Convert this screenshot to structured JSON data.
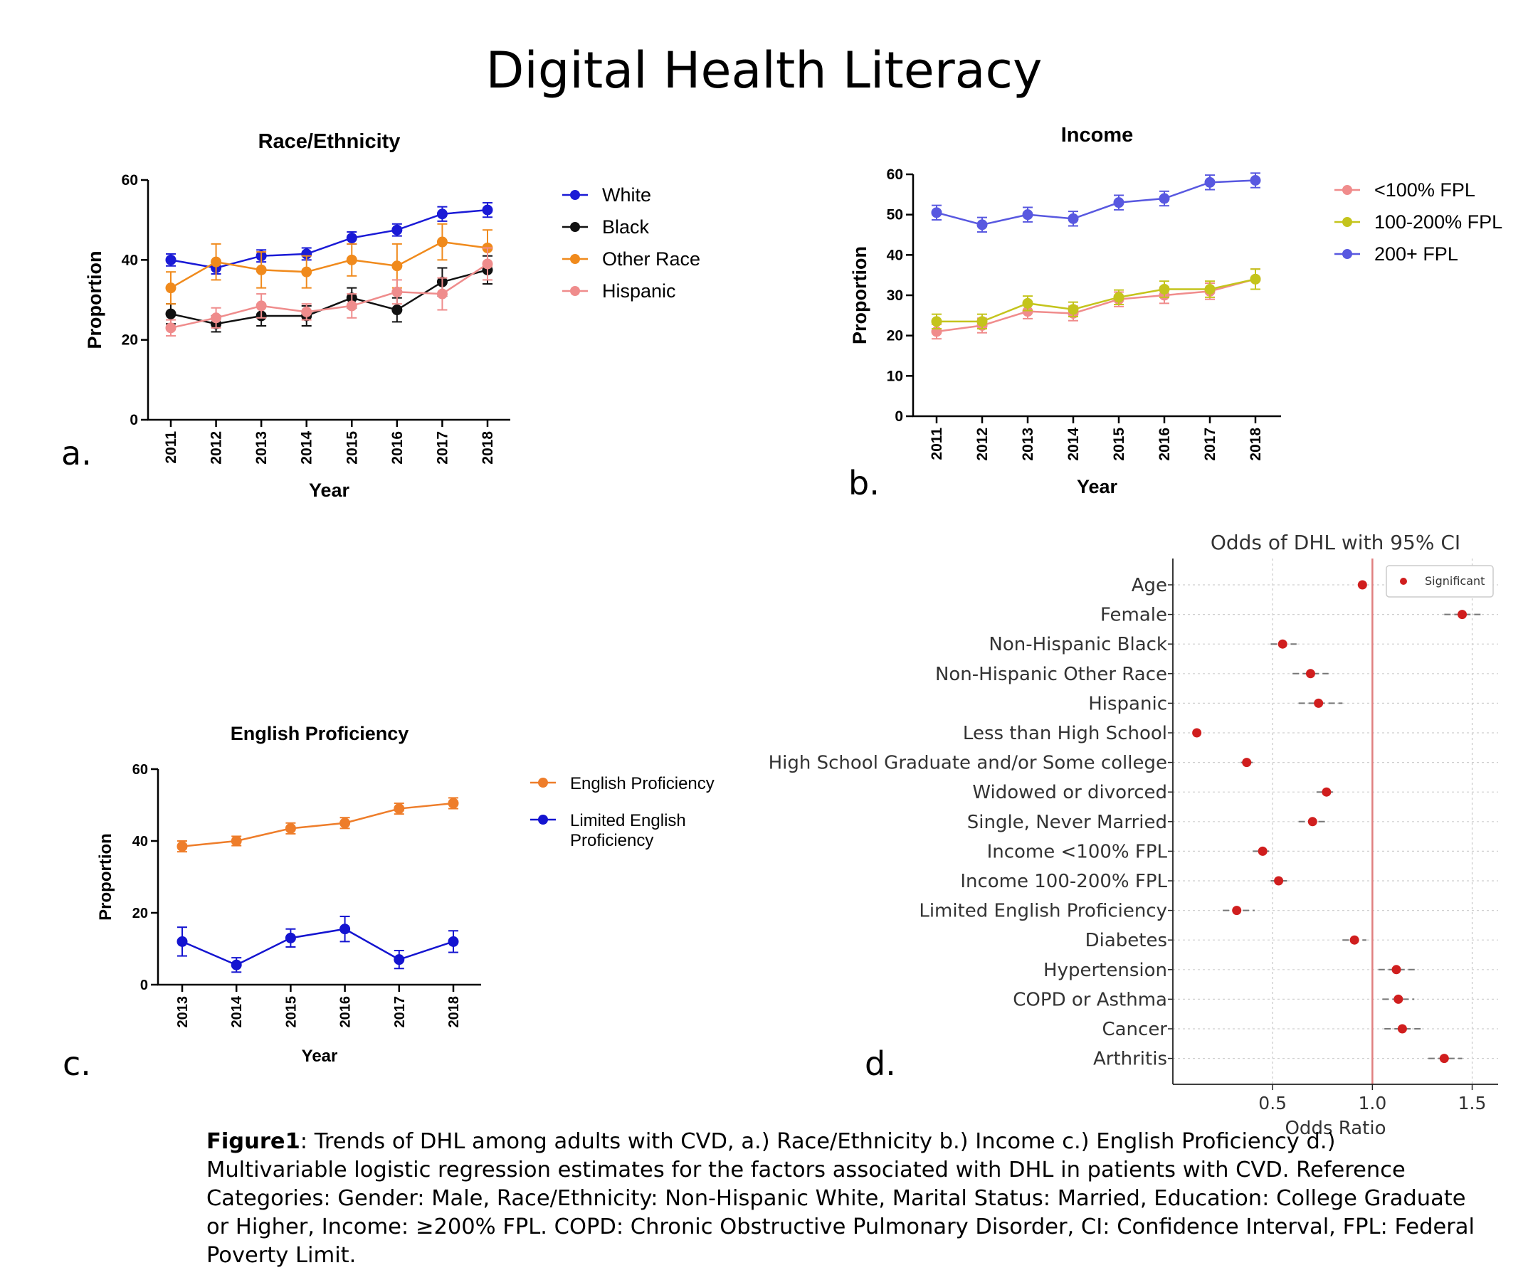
{
  "title": "Digital Health Literacy",
  "panel_letters": [
    "a.",
    "b.",
    "c.",
    "d."
  ],
  "caption": {
    "label": "Figure1",
    "text": ": Trends of DHL among adults with CVD, a.) Race/Ethnicity b.) Income c.) English Proficiency d.) Multivariable logistic regression estimates for the factors associated with DHL in patients with CVD. Reference Categories:  Gender: Male, Race/Ethnicity: Non-Hispanic White, Marital Status: Married, Education: College Graduate or Higher, Income: ≥200% FPL. COPD: Chronic Obstructive Pulmonary Disorder, CI: Confidence Interval, FPL: Federal Poverty Limit."
  },
  "chart_data": [
    {
      "id": "a",
      "type": "line",
      "title": "Race/Ethnicity",
      "xlabel": "Year",
      "ylabel": "Proportion",
      "x": [
        "2011",
        "2012",
        "2013",
        "2014",
        "2015",
        "2016",
        "2017",
        "2018"
      ],
      "ylim": [
        0,
        60
      ],
      "yticks": [
        0,
        20,
        40,
        60
      ],
      "legend_position": "right",
      "series": [
        {
          "name": "White",
          "color": "#1a1ad6",
          "values": [
            40,
            38,
            41,
            41.5,
            45.5,
            47.5,
            51.5,
            52.5
          ],
          "err": [
            1.5,
            1.5,
            1.5,
            1.5,
            1.5,
            1.5,
            1.8,
            1.8
          ]
        },
        {
          "name": "Black",
          "color": "#111111",
          "values": [
            26.5,
            24,
            26,
            26,
            30.5,
            27.5,
            34.5,
            37.5
          ],
          "err": [
            2.5,
            2,
            2.5,
            2.5,
            2.5,
            3,
            3.5,
            3.5
          ]
        },
        {
          "name": "Other Race",
          "color": "#f08a1c",
          "values": [
            33,
            39.5,
            37.5,
            37,
            40,
            38.5,
            44.5,
            43
          ],
          "err": [
            4,
            4.5,
            4.5,
            4,
            4,
            5.5,
            4.5,
            4.5
          ]
        },
        {
          "name": "Hispanic",
          "color": "#ef8c8c",
          "values": [
            23,
            25.5,
            28.5,
            27,
            28.5,
            32,
            31.5,
            39
          ],
          "err": [
            2,
            2.5,
            3,
            2,
            3,
            3,
            4,
            4
          ]
        }
      ]
    },
    {
      "id": "b",
      "type": "line",
      "title": "Income",
      "xlabel": "Year",
      "ylabel": "Proportion",
      "x": [
        "2011",
        "2012",
        "2013",
        "2014",
        "2015",
        "2016",
        "2017",
        "2018"
      ],
      "ylim": [
        0,
        60
      ],
      "yticks": [
        0,
        10,
        20,
        30,
        40,
        50,
        60
      ],
      "legend_position": "right",
      "series": [
        {
          "name": "<100% FPL",
          "color": "#f08c8c",
          "values": [
            21,
            22.5,
            26,
            25.5,
            29,
            30,
            31,
            34
          ],
          "err": [
            1.8,
            1.8,
            1.8,
            1.8,
            1.8,
            2,
            2,
            2.5
          ]
        },
        {
          "name": "100-200% FPL",
          "color": "#c4c41c",
          "values": [
            23.5,
            23.5,
            28,
            26.5,
            29.5,
            31.5,
            31.5,
            34
          ],
          "err": [
            1.8,
            1.8,
            1.8,
            1.8,
            1.8,
            2,
            2,
            2.5
          ]
        },
        {
          "name": "200+ FPL",
          "color": "#5858e0",
          "values": [
            50.5,
            47.5,
            50,
            49,
            53,
            54,
            58,
            58.5
          ],
          "err": [
            1.8,
            1.8,
            1.8,
            1.8,
            1.8,
            1.8,
            1.8,
            1.8
          ]
        }
      ]
    },
    {
      "id": "c",
      "type": "line",
      "title": "English  Proficiency",
      "xlabel": "Year",
      "ylabel": "Proportion",
      "x": [
        "2013",
        "2014",
        "2015",
        "2016",
        "2017",
        "2018"
      ],
      "ylim": [
        0,
        60
      ],
      "yticks": [
        0,
        20,
        40,
        60
      ],
      "legend_position": "right",
      "series": [
        {
          "name": "English Proficiency",
          "name_lines": [
            "English Proficiency"
          ],
          "color": "#ee7d2a",
          "values": [
            38.5,
            40,
            43.5,
            45,
            49,
            50.5
          ],
          "err": [
            1.5,
            1.3,
            1.5,
            1.5,
            1.5,
            1.5
          ]
        },
        {
          "name": "Limited English Proficiency",
          "name_lines": [
            "Limited English",
            "Proficiency"
          ],
          "color": "#1414d0",
          "values": [
            12,
            5.5,
            13,
            15.5,
            7,
            12
          ],
          "err": [
            4,
            2,
            2.5,
            3.5,
            2.5,
            3
          ]
        }
      ]
    },
    {
      "id": "d",
      "type": "scatter",
      "title": "Odds of DHL with 95% CI",
      "xlabel": "Odds Ratio",
      "xlim": [
        0.0,
        1.63
      ],
      "xticks": [
        0.5,
        1.0,
        1.5
      ],
      "xtick_labels": [
        "0.5",
        "1.0",
        "1.5"
      ],
      "reference_line": 1.0,
      "grid": true,
      "legend": {
        "label": "Significant",
        "position": "top-right",
        "color": "#d01e1e"
      },
      "categories": [
        "Age",
        "Female",
        "Non-Hispanic Black",
        "Non-Hispanic Other Race",
        "Hispanic",
        "Less than High School",
        "High School Graduate and/or Some college",
        "Widowed or divorced",
        "Single, Never Married",
        "Income <100% FPL",
        "Income 100-200% FPL",
        "Limited English Proficiency",
        "Diabetes",
        "Hypertension",
        "COPD or Asthma",
        "Cancer",
        "Arthritis"
      ],
      "values": [
        0.95,
        1.45,
        0.55,
        0.69,
        0.73,
        0.12,
        0.37,
        0.77,
        0.7,
        0.45,
        0.53,
        0.32,
        0.91,
        1.12,
        1.13,
        1.15,
        1.36
      ],
      "ci_low": [
        0.93,
        1.36,
        0.49,
        0.6,
        0.63,
        0.1,
        0.34,
        0.72,
        0.63,
        0.4,
        0.49,
        0.25,
        0.85,
        1.03,
        1.05,
        1.06,
        1.28
      ],
      "ci_high": [
        0.97,
        1.55,
        0.62,
        0.78,
        0.85,
        0.14,
        0.4,
        0.82,
        0.77,
        0.5,
        0.58,
        0.41,
        0.97,
        1.22,
        1.21,
        1.25,
        1.45
      ]
    }
  ]
}
